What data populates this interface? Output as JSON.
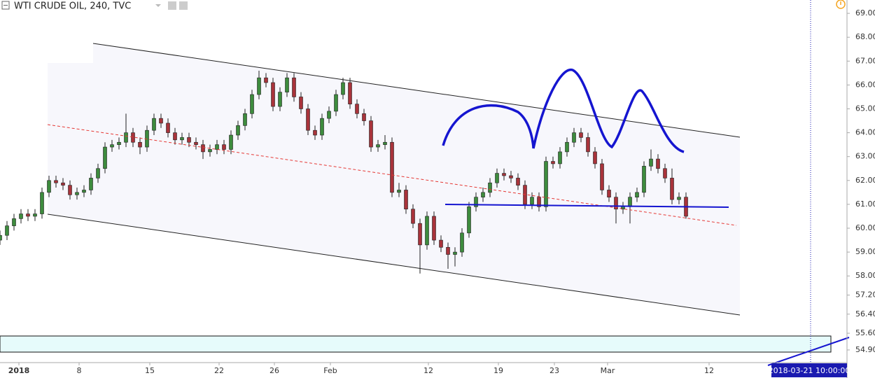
{
  "chart_data": {
    "type": "candlestick",
    "title": "WTI CRUDE OIL, 240, TVC",
    "cursor_label": "2018-03-21 10:00:00",
    "up_color": "#3d8b3d",
    "down_color": "#a8333a",
    "open": [
      59.5,
      59.7,
      60.1,
      60.4,
      60.6,
      60.5,
      60.6,
      61.5,
      62.0,
      61.9,
      61.8,
      61.4,
      61.5,
      61.6,
      62.1,
      62.5,
      63.4,
      63.5,
      63.6,
      64.0,
      63.6,
      63.4,
      64.1,
      64.6,
      64.4,
      64.0,
      63.7,
      63.8,
      63.6,
      63.5,
      63.2,
      63.3,
      63.5,
      63.3,
      63.9,
      64.3,
      64.8,
      65.6,
      66.3,
      66.1,
      65.1,
      65.7,
      66.3,
      65.5,
      65.0,
      64.1,
      63.9,
      64.6,
      64.9,
      65.6,
      66.1,
      65.2,
      64.8,
      64.5,
      63.4,
      63.5,
      63.6,
      61.5,
      61.6,
      60.8,
      60.2,
      59.3,
      60.5,
      59.5,
      59.2,
      58.9,
      59.0,
      59.8,
      60.9,
      61.3,
      61.5,
      61.9,
      62.3,
      62.2,
      62.1,
      61.8,
      61.0,
      61.3,
      60.9,
      62.8,
      62.7,
      63.2,
      63.6,
      64.0,
      63.8,
      63.2,
      62.7,
      61.6,
      61.3,
      60.8,
      60.9,
      61.3,
      61.5,
      62.6,
      62.9,
      62.5,
      62.1,
      61.2,
      61.3
    ],
    "high": [
      59.9,
      60.3,
      60.6,
      60.8,
      60.8,
      60.8,
      61.7,
      62.2,
      62.2,
      62.1,
      62.0,
      61.7,
      61.8,
      62.3,
      62.7,
      63.6,
      63.7,
      63.8,
      64.8,
      64.2,
      63.8,
      64.3,
      64.8,
      64.8,
      64.6,
      64.2,
      64.0,
      64.0,
      63.8,
      63.7,
      63.5,
      63.7,
      63.7,
      64.1,
      64.5,
      65.0,
      65.8,
      66.6,
      66.5,
      66.3,
      65.9,
      66.5,
      66.5,
      65.7,
      65.2,
      64.3,
      64.8,
      65.1,
      65.8,
      66.3,
      66.3,
      65.4,
      65.0,
      64.7,
      63.7,
      63.9,
      63.8,
      61.9,
      61.8,
      61.0,
      60.4,
      60.7,
      60.7,
      59.7,
      59.4,
      59.2,
      60.0,
      61.1,
      61.5,
      61.7,
      62.1,
      62.5,
      62.5,
      62.4,
      62.3,
      62.0,
      61.5,
      61.5,
      63.0,
      63.0,
      63.4,
      63.8,
      64.2,
      64.2,
      64.0,
      63.4,
      62.9,
      61.8,
      61.5,
      61.1,
      61.5,
      61.7,
      62.8,
      63.3,
      63.1,
      62.7,
      62.5,
      61.5,
      61.5
    ],
    "low": [
      59.3,
      59.5,
      59.9,
      60.2,
      60.3,
      60.3,
      60.4,
      61.3,
      61.7,
      61.6,
      61.2,
      61.2,
      61.3,
      61.4,
      61.9,
      62.3,
      63.2,
      63.3,
      63.4,
      63.4,
      63.1,
      63.2,
      63.9,
      64.2,
      63.8,
      63.5,
      63.5,
      63.4,
      63.3,
      62.9,
      63.0,
      63.1,
      63.1,
      63.1,
      63.7,
      64.1,
      64.6,
      65.4,
      65.9,
      64.9,
      64.9,
      65.5,
      65.3,
      64.8,
      63.9,
      63.7,
      63.7,
      64.4,
      64.7,
      65.4,
      65.0,
      64.6,
      64.3,
      63.2,
      63.2,
      63.3,
      61.3,
      61.3,
      60.6,
      60.0,
      58.1,
      59.1,
      59.3,
      59.0,
      58.3,
      58.4,
      58.8,
      59.6,
      60.7,
      61.1,
      61.3,
      61.7,
      62.0,
      61.9,
      61.6,
      60.8,
      60.8,
      60.7,
      60.7,
      62.5,
      62.5,
      63.0,
      63.4,
      63.6,
      63.0,
      62.5,
      61.4,
      61.1,
      60.2,
      60.6,
      60.2,
      61.1,
      61.3,
      62.4,
      62.3,
      61.9,
      61.0,
      61.0,
      60.4
    ],
    "close": [
      59.7,
      60.1,
      60.4,
      60.6,
      60.5,
      60.6,
      61.5,
      62.0,
      61.9,
      61.8,
      61.4,
      61.5,
      61.6,
      62.1,
      62.5,
      63.4,
      63.5,
      63.6,
      64.0,
      63.6,
      63.4,
      64.1,
      64.6,
      64.4,
      64.0,
      63.7,
      63.8,
      63.6,
      63.5,
      63.2,
      63.3,
      63.5,
      63.3,
      63.9,
      64.3,
      64.8,
      65.6,
      66.3,
      66.1,
      65.1,
      65.7,
      66.3,
      65.5,
      65.0,
      64.1,
      63.9,
      64.6,
      64.9,
      65.6,
      66.1,
      65.2,
      64.8,
      64.5,
      63.4,
      63.5,
      63.6,
      61.5,
      61.6,
      60.8,
      60.2,
      59.3,
      60.5,
      59.5,
      59.2,
      58.9,
      59.0,
      59.8,
      60.9,
      61.3,
      61.5,
      61.9,
      62.3,
      62.2,
      62.1,
      61.8,
      61.0,
      61.3,
      60.9,
      62.8,
      62.7,
      63.2,
      63.6,
      64.0,
      63.8,
      63.2,
      62.7,
      61.6,
      61.3,
      60.8,
      60.9,
      61.3,
      61.5,
      62.6,
      62.9,
      62.5,
      62.1,
      61.2,
      61.3,
      60.5
    ],
    "xlim": [
      0,
      121
    ],
    "xticks": [
      {
        "value": 2.7,
        "label": "2018"
      },
      {
        "value": 11.3,
        "label": "8"
      },
      {
        "value": 21.4,
        "label": "15"
      },
      {
        "value": 31.3,
        "label": "22"
      },
      {
        "value": 39.2,
        "label": "26"
      },
      {
        "value": 47.2,
        "label": "Feb"
      },
      {
        "value": 61.2,
        "label": "12"
      },
      {
        "value": 71.2,
        "label": "19"
      },
      {
        "value": 79.2,
        "label": "23"
      },
      {
        "value": 86.8,
        "label": "Mar"
      },
      {
        "value": 101.3,
        "label": "12"
      }
    ],
    "ylim": [
      54.37,
      69.56
    ],
    "yticks": [
      {
        "value": 69,
        "label": "69.00"
      },
      {
        "value": 68,
        "label": "68.00"
      },
      {
        "value": 67,
        "label": "67.00"
      },
      {
        "value": 66,
        "label": "66.00"
      },
      {
        "value": 65,
        "label": "65.00"
      },
      {
        "value": 64,
        "label": "64.00"
      },
      {
        "value": 63,
        "label": "63.00"
      },
      {
        "value": 62,
        "label": "62.00"
      },
      {
        "value": 61,
        "label": "61.00"
      },
      {
        "value": 60,
        "label": "60.00"
      },
      {
        "value": 59,
        "label": "59.00"
      },
      {
        "value": 58,
        "label": "58.00"
      },
      {
        "value": 57.2,
        "label": "57.20"
      },
      {
        "value": 56.4,
        "label": "56.40"
      },
      {
        "value": 55.6,
        "label": "55.60"
      },
      {
        "value": 54.9,
        "label": "54.90"
      }
    ]
  }
}
